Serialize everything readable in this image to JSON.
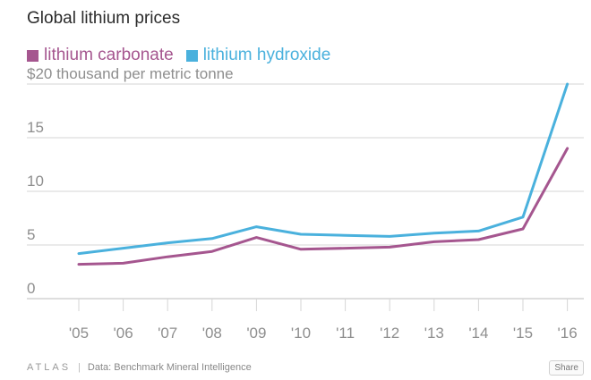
{
  "colors": {
    "lithium_carbonate": "#a5568f",
    "lithium_hydroxide": "#4ab1dd",
    "grid": "#d6d6d6",
    "tick_text": "#8e8e8e"
  },
  "footer": {
    "brand": "ATLAS",
    "source": "Data: Benchmark Mineral Intelligence",
    "share_label": "Share"
  },
  "chart_data": {
    "type": "line",
    "title": "Global lithium prices",
    "ylabel": "$20 thousand per metric tonne",
    "legend_placement": "top-left",
    "grid": true,
    "ylim": [
      0,
      20
    ],
    "yticks": [
      0,
      5,
      10,
      15
    ],
    "categories": [
      "'05",
      "'06",
      "'07",
      "'08",
      "'09",
      "'10",
      "'11",
      "'12",
      "'13",
      "'14",
      "'15",
      "'16"
    ],
    "series": [
      {
        "name": "lithium carbonate",
        "color_key": "lithium_carbonate",
        "values": [
          3.2,
          3.3,
          3.9,
          4.4,
          5.7,
          4.6,
          4.7,
          4.8,
          5.3,
          5.5,
          6.5,
          14.0
        ]
      },
      {
        "name": "lithium hydroxide",
        "color_key": "lithium_hydroxide",
        "values": [
          4.2,
          4.7,
          5.2,
          5.6,
          6.7,
          6.0,
          5.9,
          5.8,
          6.1,
          6.3,
          7.6,
          20.0
        ]
      }
    ]
  }
}
